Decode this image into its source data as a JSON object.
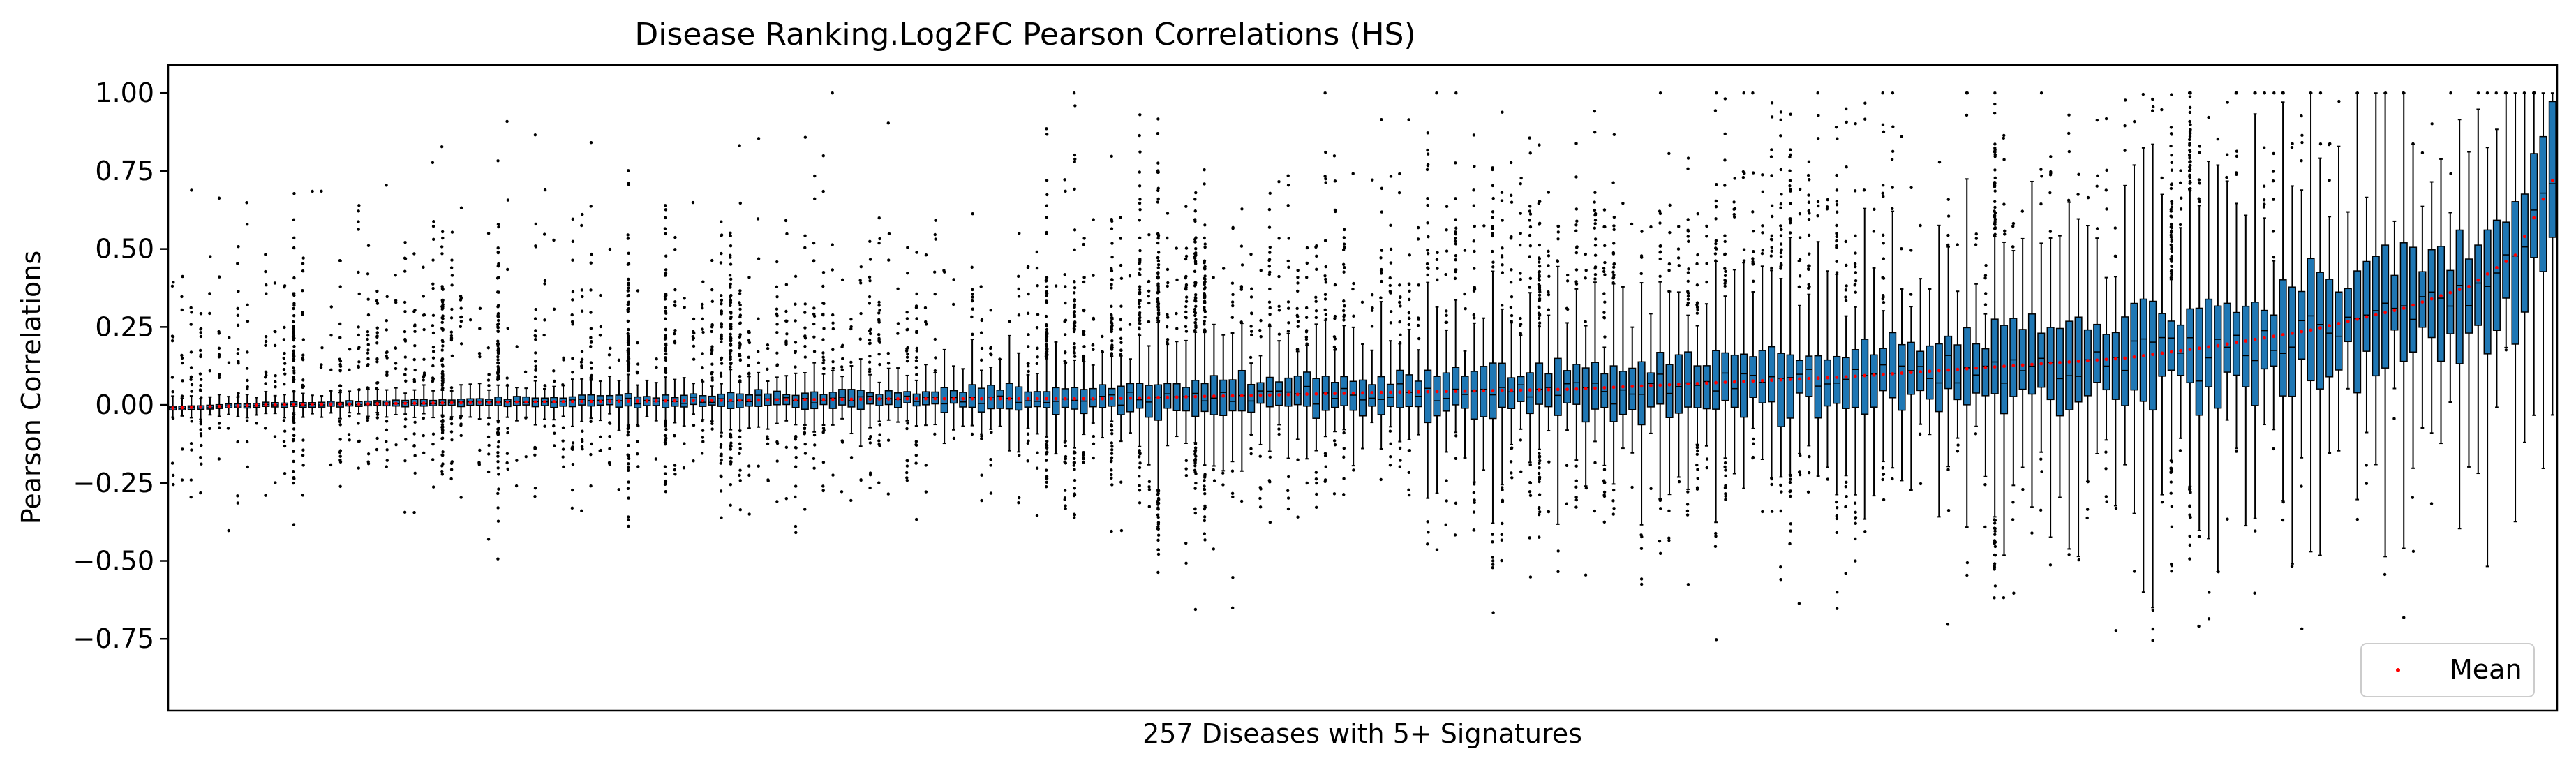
{
  "chart_data": {
    "type": "box",
    "title": "Disease Ranking.Log2FC Pearson Correlations (HS)",
    "xlabel": "257 Diseases with 5+ Signatures",
    "ylabel": "Pearson Correlations",
    "ylim": [
      -0.98,
      1.09
    ],
    "yticks": [
      -0.75,
      -0.5,
      -0.25,
      0.0,
      0.25,
      0.5,
      0.75,
      1.0
    ],
    "ytick_labels": [
      "−0.75",
      "−0.50",
      "−0.25",
      "0.00",
      "0.25",
      "0.50",
      "0.75",
      "1.00"
    ],
    "n_diseases": 257,
    "sorted_by": "mean",
    "grid": false,
    "legend": {
      "position": "lower-right",
      "entries": [
        {
          "label": "Mean",
          "color": "#ff0000",
          "marker": "point"
        }
      ]
    },
    "box_color": "#1f77b4",
    "mean_color": "#ff0000",
    "mean_range": [
      -0.01,
      0.72
    ],
    "mean_anchors": [
      [
        0,
        -0.01
      ],
      [
        10,
        0.0
      ],
      [
        40,
        0.01
      ],
      [
        80,
        0.02
      ],
      [
        100,
        0.02
      ],
      [
        130,
        0.04
      ],
      [
        150,
        0.05
      ],
      [
        165,
        0.07
      ],
      [
        180,
        0.09
      ],
      [
        195,
        0.12
      ],
      [
        210,
        0.15
      ],
      [
        220,
        0.19
      ],
      [
        230,
        0.24
      ],
      [
        240,
        0.31
      ],
      [
        247,
        0.38
      ],
      [
        252,
        0.48
      ],
      [
        256,
        0.72
      ]
    ],
    "extreme_values": {
      "max": 1.0,
      "min": -0.9
    }
  }
}
